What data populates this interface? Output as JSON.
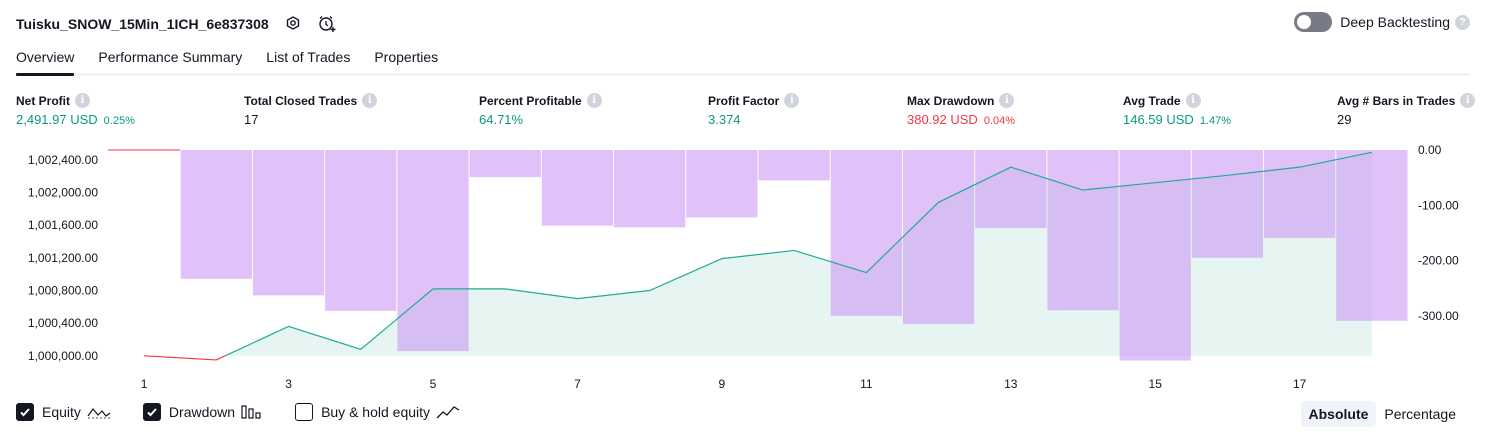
{
  "header": {
    "title": "Tuisku_SNOW_15Min_1ICH_6e837308",
    "deep_backtesting_label": "Deep Backtesting"
  },
  "tabs": [
    {
      "label": "Overview",
      "active": true
    },
    {
      "label": "Performance Summary",
      "active": false
    },
    {
      "label": "List of Trades",
      "active": false
    },
    {
      "label": "Properties",
      "active": false
    }
  ],
  "metrics": {
    "net_profit": {
      "label": "Net Profit",
      "value": "2,491.97 USD",
      "sub": "0.25%"
    },
    "total_closed_trades": {
      "label": "Total Closed Trades",
      "value": "17"
    },
    "percent_profitable": {
      "label": "Percent Profitable",
      "value": "64.71%"
    },
    "profit_factor": {
      "label": "Profit Factor",
      "value": "3.374"
    },
    "max_drawdown": {
      "label": "Max Drawdown",
      "value": "380.92 USD",
      "sub": "0.04%"
    },
    "avg_trade": {
      "label": "Avg Trade",
      "value": "146.59 USD",
      "sub": "1.47%"
    },
    "avg_bars": {
      "label": "Avg # Bars in Trades",
      "value": "29"
    }
  },
  "chart_data": {
    "type": "line",
    "x": [
      1,
      2,
      3,
      4,
      5,
      6,
      7,
      8,
      9,
      10,
      11,
      12,
      13,
      14,
      15,
      16,
      17,
      18
    ],
    "x_ticks": [
      "1",
      "3",
      "5",
      "7",
      "9",
      "11",
      "13",
      "15",
      "17"
    ],
    "series": [
      {
        "name": "Equity",
        "axis": "left",
        "values": [
          1000000,
          999950,
          1000360,
          1000080,
          1000820,
          1000820,
          1000700,
          1000800,
          1001190,
          1001290,
          1001020,
          1001880,
          1002310,
          1002030,
          1002120,
          1002210,
          1002310,
          1002492
        ]
      },
      {
        "name": "Drawdown",
        "type": "bar",
        "axis": "right",
        "values": [
          0,
          -233,
          -263,
          -291,
          -364,
          -49,
          -137,
          -140,
          -122,
          -55,
          -300,
          -315,
          -141,
          -290,
          -381,
          -195,
          -159,
          -309
        ]
      }
    ],
    "left_axis": {
      "min": 999900,
      "max": 1002520,
      "ticks": [
        "1,002,400.00",
        "1,002,000.00",
        "1,001,600.00",
        "1,001,200.00",
        "1,000,800.00",
        "1,000,400.00",
        "1,000,000.00"
      ],
      "tick_values": [
        1002400,
        1002000,
        1001600,
        1001200,
        1000800,
        1000400,
        1000000
      ]
    },
    "right_axis": {
      "min": -380,
      "max": 0,
      "ticks": [
        "0.00",
        "-100.00",
        "-200.00",
        "-300.00"
      ],
      "tick_values": [
        0,
        -100,
        -200,
        -300
      ]
    },
    "colors": {
      "equity_line": "#22ab94",
      "equity_fill": "#e6f5f1",
      "equity_negative": "#f23645",
      "drawdown": "#e0c3fb",
      "drawdown_overlap": "#b3b8ec"
    }
  },
  "legend": [
    {
      "label": "Equity",
      "checked": true,
      "icon": "equity-line-icon"
    },
    {
      "label": "Drawdown",
      "checked": true,
      "icon": "drawdown-bars-icon"
    },
    {
      "label": "Buy & hold equity",
      "checked": false,
      "icon": "buy-hold-line-icon"
    }
  ],
  "mode": {
    "absolute_label": "Absolute",
    "percentage_label": "Percentage",
    "selected": "Absolute"
  }
}
